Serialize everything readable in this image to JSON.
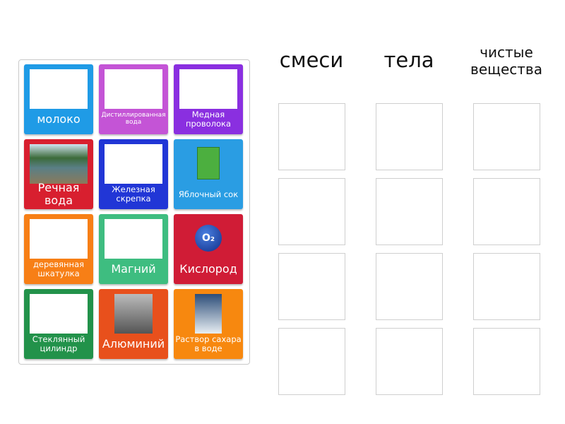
{
  "headers": [
    "смеси",
    "тела",
    "чистые вещества"
  ],
  "cards": [
    {
      "label": "молоко",
      "color": "#1f9be6",
      "icon": "milk-image"
    },
    {
      "label": "Дистиллированная вода",
      "color": "#c454d6",
      "icon": "water-bottle-image"
    },
    {
      "label": "Медная проволока",
      "color": "#8a2fe0",
      "icon": "copper-wire-image"
    },
    {
      "label": "Речная вода",
      "color": "#d81f2f",
      "icon": "river-image"
    },
    {
      "label": "Железная скрепка",
      "color": "#2136d6",
      "icon": "paperclip-image"
    },
    {
      "label": "Яблочный сок",
      "color": "#2a9de3",
      "icon": "juice-box-image"
    },
    {
      "label": "деревянная шкатулка",
      "color": "#f77f16",
      "icon": "wooden-box-image"
    },
    {
      "label": "Магний",
      "color": "#3ebd80",
      "icon": "magnesium-image"
    },
    {
      "label": "Кислород",
      "color": "#d01c36",
      "icon": "oxygen-image"
    },
    {
      "label": "Стеклянный цилиндр",
      "color": "#22924a",
      "icon": "glass-cylinder-image"
    },
    {
      "label": "Алюминий",
      "color": "#e8501c",
      "icon": "aluminum-image"
    },
    {
      "label": "Раствор сахара в воде",
      "color": "#f7880f",
      "icon": "sugar-solution-image"
    }
  ]
}
